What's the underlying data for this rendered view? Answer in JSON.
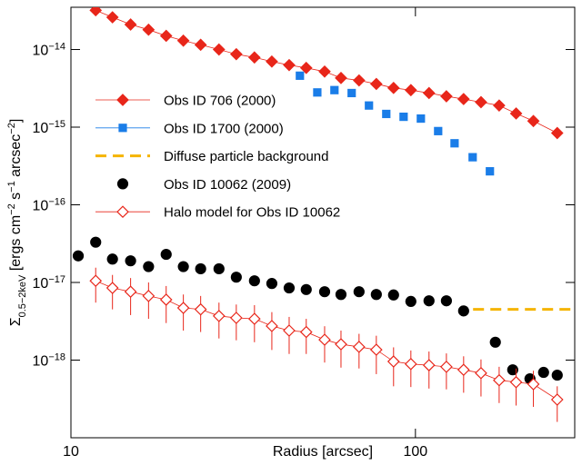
{
  "chart_data": {
    "type": "scatter",
    "xlabel": "Radius [arcsec]",
    "ylabel": [
      {
        "text": "Σ",
        "pos": "base"
      },
      {
        "text": "0.5−2keV",
        "pos": "sub"
      },
      {
        "text": " [ergs cm",
        "pos": "base"
      },
      {
        "text": "−2",
        "pos": "sup"
      },
      {
        "text": " s",
        "pos": "base"
      },
      {
        "text": "−1",
        "pos": "sup"
      },
      {
        "text": " arcsec",
        "pos": "base"
      },
      {
        "text": "−2",
        "pos": "sup"
      },
      {
        "text": "]",
        "pos": "base"
      }
    ],
    "xscale": "log",
    "yscale": "log",
    "xlim": [
      10,
      290
    ],
    "ylim": [
      1e-19,
      3.5e-14
    ],
    "xticks": [
      10,
      100
    ],
    "yticks": [
      {
        "value": 1e-18,
        "label": "10−18"
      },
      {
        "value": 1e-17,
        "label": "10−17"
      },
      {
        "value": 1e-16,
        "label": "10−16"
      },
      {
        "value": 1e-15,
        "label": "10−15"
      },
      {
        "value": 1e-14,
        "label": "10−14"
      }
    ],
    "legend": "upper left",
    "series": [
      {
        "name": "Obs ID 706 (2000)",
        "color": "#e8261a",
        "marker": "diamond",
        "filled": true,
        "connect": true,
        "x": [
          11.8,
          13.2,
          14.9,
          16.8,
          18.9,
          21.2,
          23.8,
          26.9,
          30.2,
          34.1,
          38.3,
          43.0,
          48.2,
          54.5,
          60.8,
          68.6,
          77.0,
          86.4,
          97.0,
          109.5,
          123,
          138,
          155,
          175,
          196,
          220,
          258
        ],
        "values": [
          3.2e-14,
          2.6e-14,
          2.1e-14,
          1.8e-14,
          1.5e-14,
          1.3e-14,
          1.15e-14,
          1e-14,
          8.7e-15,
          7.9e-15,
          7e-15,
          6.3e-15,
          5.8e-15,
          5.2e-15,
          4.3e-15,
          4e-15,
          3.6e-15,
          3.2e-15,
          3e-15,
          2.75e-15,
          2.5e-15,
          2.3e-15,
          2.1e-15,
          1.9e-15,
          1.5e-15,
          1.2e-15,
          8.4e-16
        ]
      },
      {
        "name": "Obs ID 1700 (2000)",
        "color": "#1a7de8",
        "marker": "square",
        "filled": true,
        "connect": false,
        "x": [
          46.2,
          51.9,
          58.2,
          65.3,
          73.3,
          82.3,
          92.4,
          103.7,
          116.4,
          129.9,
          146.6,
          164.5
        ],
        "values": [
          4.6e-15,
          2.8e-15,
          3e-15,
          2.75e-15,
          1.9e-15,
          1.48e-15,
          1.36e-15,
          1.29e-15,
          8.9e-16,
          6.2e-16,
          4.1e-16,
          2.7e-16
        ]
      },
      {
        "name": "Diffuse particle background",
        "color": "#f5b400",
        "marker": "dash",
        "connect": true,
        "x": [
          147,
          290
        ],
        "values": [
          4.5e-18,
          4.5e-18
        ]
      },
      {
        "name": "Obs ID 10062 (2009)",
        "color": "#000000",
        "marker": "circle",
        "filled": true,
        "connect": false,
        "x": [
          10.5,
          11.8,
          13.2,
          14.9,
          16.8,
          18.9,
          21.2,
          23.8,
          26.9,
          30.2,
          34.1,
          38.3,
          43.0,
          48.2,
          54.5,
          60.8,
          68.6,
          77.0,
          86.4,
          97.0,
          109.5,
          123,
          138,
          170.6,
          191.6,
          215,
          235.5,
          258
        ],
        "values": [
          2.2e-17,
          3.3e-17,
          2e-17,
          1.9e-17,
          1.6e-17,
          2.3e-17,
          1.6e-17,
          1.5e-17,
          1.5e-17,
          1.17e-17,
          1.05e-17,
          9.7e-18,
          8.5e-18,
          8.1e-18,
          7.6e-18,
          7e-18,
          7.6e-18,
          7e-18,
          6.9e-18,
          5.7e-18,
          5.8e-18,
          5.8e-18,
          4.3e-18,
          1.7e-18,
          7.5e-19,
          5.75e-19,
          6.95e-19,
          6.4e-19
        ]
      },
      {
        "name": "Halo model for Obs ID 10062",
        "color": "#e8261a",
        "marker": "diamond",
        "filled": false,
        "connect": true,
        "x": [
          11.8,
          13.2,
          14.9,
          16.8,
          18.9,
          21.2,
          23.8,
          26.9,
          30.2,
          34.1,
          38.3,
          43.0,
          48.2,
          54.5,
          60.8,
          68.6,
          77.0,
          86.4,
          97.0,
          109.5,
          123,
          138,
          155,
          175,
          196,
          220,
          258
        ],
        "values": [
          1.05e-17,
          8.5e-18,
          7.6e-18,
          6.7e-18,
          6e-18,
          4.7e-18,
          4.5e-18,
          3.7e-18,
          3.5e-18,
          3.4e-18,
          2.75e-18,
          2.4e-18,
          2.3e-18,
          1.83e-18,
          1.6e-18,
          1.48e-18,
          1.36e-18,
          9.6e-19,
          8.9e-19,
          8.6e-19,
          8.2e-19,
          7.5e-19,
          6.8e-19,
          5.5e-19,
          5.2e-19,
          4.9e-19,
          3.1e-19
        ],
        "yerr": [
          5e-18,
          4e-18,
          3.8e-18,
          3.3e-18,
          3e-18,
          2.3e-18,
          2.2e-18,
          1.8e-18,
          1.7e-18,
          1.7e-18,
          1.4e-18,
          1.2e-18,
          1.1e-18,
          9e-19,
          8e-19,
          7e-19,
          7e-19,
          5e-19,
          4.4e-19,
          4.3e-19,
          4e-19,
          3.7e-19,
          3.4e-19,
          2.7e-19,
          2.6e-19,
          2.4e-19,
          1.5e-19
        ]
      }
    ]
  }
}
